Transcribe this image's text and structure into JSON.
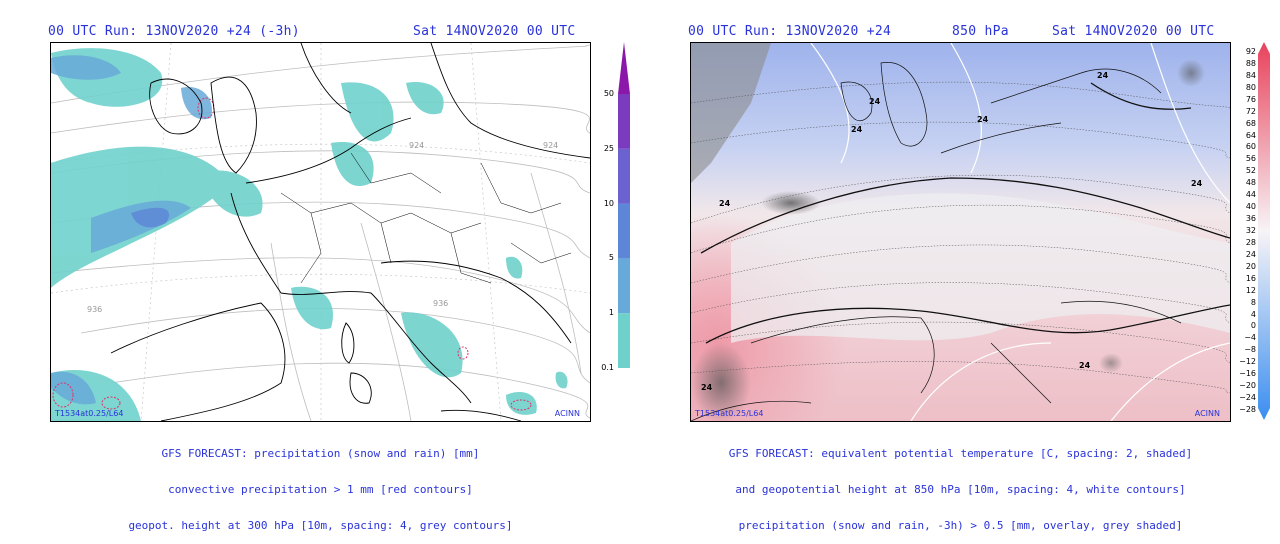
{
  "left": {
    "header_left": "00 UTC Run: 13NOV2020 +24 (-3h)",
    "header_right": "Sat 14NOV2020 00 UTC",
    "corner_left": "T1534at0.25/L64",
    "corner_right": "ACINN",
    "caption": [
      "GFS FORECAST: precipitation (snow and rain) [mm]",
      "convective precipitation > 1 mm [red contours]",
      "geopot. height at 300 hPa [10m, spacing: 4, grey contours]"
    ],
    "height_labels": [
      "924",
      "924",
      "936",
      "936"
    ],
    "colorbar": {
      "ticks": [
        "0.1",
        "1",
        "5",
        "10",
        "25",
        "50"
      ],
      "colors": [
        "#6fd1cc",
        "#67a9d8",
        "#5d86d6",
        "#6b61cf",
        "#7b3bbf",
        "#8b18a8"
      ]
    }
  },
  "right": {
    "header_left": "00 UTC Run: 13NOV2020 +24",
    "header_mid": "850 hPa",
    "header_right": "Sat 14NOV2020 00 UTC",
    "corner_left": "T1534at0.25/L64",
    "corner_right": "ACINN",
    "caption": [
      "GFS FORECAST: equivalent potential temperature [C, spacing: 2, shaded]",
      "and geopotential height at 850 hPa [10m, spacing: 4, white contours]",
      "precipitation (snow and rain, -3h) > 0.5 [mm, overlay, grey shaded]"
    ],
    "contour_labels": [
      "24",
      "24",
      "24",
      "24",
      "24",
      "24",
      "24",
      "24"
    ],
    "colorbar": {
      "ticks": [
        "92",
        "88",
        "84",
        "80",
        "76",
        "72",
        "68",
        "64",
        "60",
        "56",
        "52",
        "48",
        "44",
        "40",
        "36",
        "32",
        "28",
        "24",
        "20",
        "16",
        "12",
        "8",
        "4",
        "0",
        "−4",
        "−8",
        "−12",
        "−16",
        "−20",
        "−24",
        "−28"
      ],
      "top_color": "#e8425c",
      "bottom_color": "#3b8ef0"
    }
  }
}
